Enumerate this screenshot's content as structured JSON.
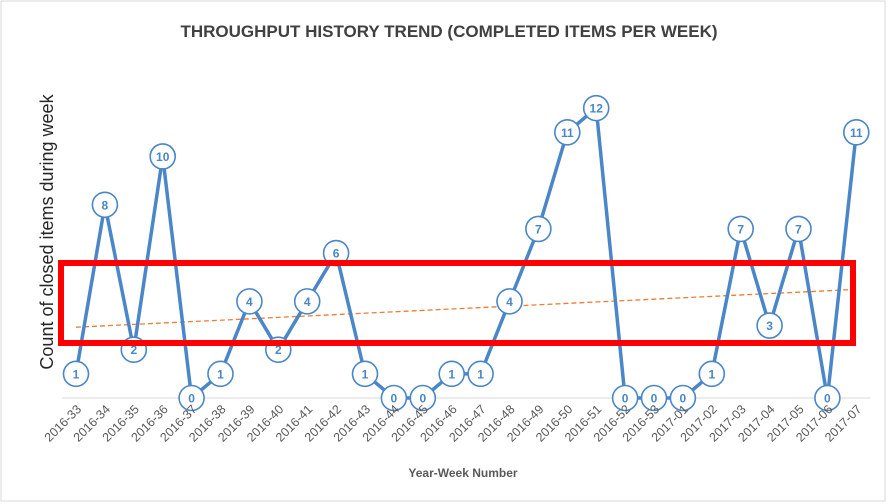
{
  "chart_data": {
    "type": "line",
    "title": "THROUGHPUT  HISTORY TREND (COMPLETED ITEMS PER WEEK)",
    "xlabel": "Year-Week Number",
    "ylabel": "Count of closed items during week",
    "categories": [
      "2016-33",
      "2016-34",
      "2016-35",
      "2016-36",
      "2016-37",
      "2016-38",
      "2016-39",
      "2016-40",
      "2016-41",
      "2016-42",
      "2016-43",
      "2016-44",
      "2016-45",
      "2016-46",
      "2016-47",
      "2016-48",
      "2016-49",
      "2016-50",
      "2016-51",
      "2016-52",
      "2016-53",
      "2017-01",
      "2017-02",
      "2017-03",
      "2017-04",
      "2017-05",
      "2017-06",
      "2017-07"
    ],
    "series": [
      {
        "values": [
          1,
          8,
          2,
          10,
          0,
          1,
          4,
          2,
          4,
          6,
          1,
          0,
          0,
          1,
          1,
          4,
          7,
          11,
          12,
          0,
          0,
          0,
          1,
          7,
          3,
          7,
          0,
          11
        ]
      }
    ],
    "trendline": {
      "type": "linear",
      "style": "dashed"
    },
    "ylim": [
      0,
      13
    ],
    "grid": false,
    "legend": "none",
    "data_labels": true,
    "colors": {
      "series": "#4a86c8",
      "trend": "#ed7d31",
      "highlight": "#ff0000",
      "border": "#d9d9d9"
    },
    "annotation": {
      "shape": "rectangle",
      "color": "#ff0000"
    }
  }
}
